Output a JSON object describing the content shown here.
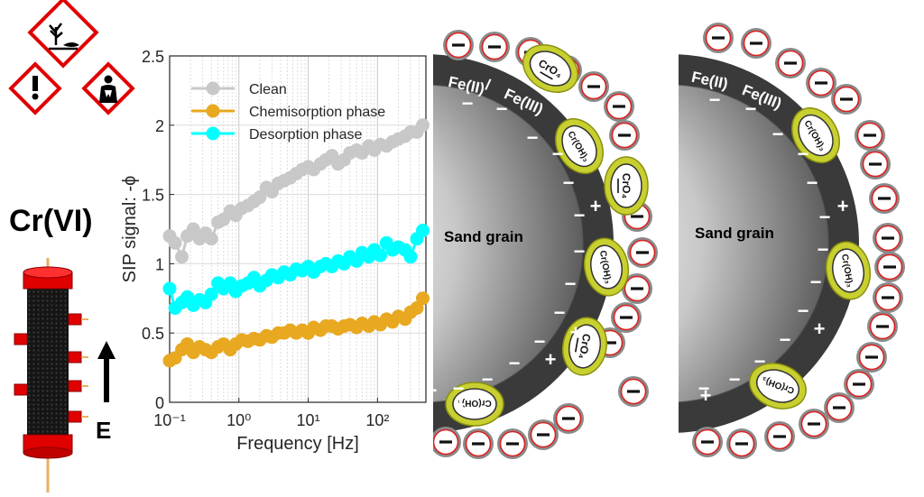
{
  "hazard": {
    "icons": [
      "environment-hazard-icon",
      "exclamation-hazard-icon",
      "health-hazard-icon"
    ]
  },
  "species_label": "Cr(VI)",
  "column": {
    "arrow_label": "E"
  },
  "chart_data": {
    "type": "scatter",
    "xlabel": "Frequency [Hz]",
    "ylabel": "SIP signal: -ϕ",
    "x_scale": "log",
    "xlim": [
      0.1,
      500
    ],
    "ylim": [
      0,
      2.5
    ],
    "yticks": [
      "0",
      "0.5",
      "1",
      "1.5",
      "2",
      "2.5"
    ],
    "xticks": [
      "10⁻¹",
      "10⁰",
      "10¹",
      "10²"
    ],
    "grid": true,
    "legend_position": "top-left",
    "series": [
      {
        "name": "Clean",
        "color": "#c8c8c8",
        "x": [
          0.1,
          0.12,
          0.15,
          0.18,
          0.22,
          0.27,
          0.33,
          0.4,
          0.5,
          0.6,
          0.75,
          0.9,
          1.1,
          1.35,
          1.65,
          2,
          2.5,
          3,
          3.7,
          4.5,
          5.5,
          6.7,
          8.2,
          10,
          12,
          15,
          18,
          22,
          27,
          33,
          40,
          50,
          60,
          75,
          90,
          110,
          135,
          165,
          200,
          250,
          300,
          370,
          450
        ],
        "y": [
          1.2,
          1.15,
          1.05,
          1.2,
          1.25,
          1.18,
          1.22,
          1.18,
          1.3,
          1.32,
          1.38,
          1.35,
          1.4,
          1.42,
          1.45,
          1.48,
          1.55,
          1.52,
          1.58,
          1.6,
          1.62,
          1.65,
          1.68,
          1.7,
          1.68,
          1.72,
          1.75,
          1.78,
          1.72,
          1.75,
          1.8,
          1.82,
          1.8,
          1.85,
          1.82,
          1.86,
          1.85,
          1.88,
          1.9,
          1.92,
          1.95,
          1.95,
          2.0
        ]
      },
      {
        "name": "Chemisorption phase",
        "color": "#e8a820",
        "x": [
          0.1,
          0.12,
          0.15,
          0.18,
          0.22,
          0.27,
          0.33,
          0.4,
          0.5,
          0.6,
          0.75,
          0.9,
          1.1,
          1.35,
          1.65,
          2,
          2.5,
          3,
          3.7,
          4.5,
          5.5,
          6.7,
          8.2,
          10,
          12,
          15,
          18,
          22,
          27,
          33,
          40,
          50,
          60,
          75,
          90,
          110,
          135,
          165,
          200,
          250,
          300,
          370,
          450
        ],
        "y": [
          0.3,
          0.32,
          0.38,
          0.42,
          0.36,
          0.4,
          0.38,
          0.36,
          0.4,
          0.42,
          0.38,
          0.42,
          0.45,
          0.44,
          0.46,
          0.45,
          0.48,
          0.47,
          0.5,
          0.5,
          0.52,
          0.5,
          0.52,
          0.5,
          0.54,
          0.52,
          0.55,
          0.55,
          0.53,
          0.55,
          0.56,
          0.54,
          0.57,
          0.55,
          0.58,
          0.56,
          0.6,
          0.58,
          0.62,
          0.6,
          0.65,
          0.68,
          0.75
        ]
      },
      {
        "name": "Desorption phase",
        "color": "#00ffff",
        "x": [
          0.1,
          0.12,
          0.15,
          0.18,
          0.22,
          0.27,
          0.33,
          0.4,
          0.5,
          0.6,
          0.75,
          0.9,
          1.1,
          1.35,
          1.65,
          2,
          2.5,
          3,
          3.7,
          4.5,
          5.5,
          6.7,
          8.2,
          10,
          12,
          15,
          18,
          22,
          27,
          33,
          40,
          50,
          60,
          75,
          90,
          110,
          135,
          165,
          200,
          250,
          300,
          370,
          450
        ],
        "y": [
          0.82,
          0.68,
          0.72,
          0.76,
          0.7,
          0.74,
          0.72,
          0.78,
          0.86,
          0.82,
          0.86,
          0.8,
          0.84,
          0.86,
          0.9,
          0.84,
          0.88,
          0.92,
          0.9,
          0.94,
          0.92,
          0.96,
          0.95,
          0.98,
          0.94,
          0.98,
          1.0,
          0.98,
          1.02,
          1.0,
          1.05,
          1.02,
          1.08,
          1.05,
          1.1,
          1.06,
          1.15,
          1.1,
          1.12,
          1.1,
          1.05,
          1.18,
          1.24
        ]
      }
    ]
  },
  "panel1": {
    "shell_label_left": "Fe(II)",
    "shell_label_right": "Fe(III)",
    "core_label": "Sand grain",
    "adsorbed": [
      {
        "label": "CrO₄",
        "kind": "chromate"
      },
      {
        "label": "Cr(OH)₃",
        "kind": "hydroxide"
      },
      {
        "label": "CrO₄",
        "kind": "chromate"
      },
      {
        "label": "Cr(OH)₃",
        "kind": "hydroxide"
      },
      {
        "label": "CrO₄",
        "kind": "chromate"
      },
      {
        "label": "Cr(OH)₃",
        "kind": "hydroxide"
      }
    ]
  },
  "panel2": {
    "shell_label_left": "Fe(II)",
    "shell_label_right": "Fe(III)",
    "core_label": "Sand grain",
    "adsorbed": [
      {
        "label": "Cr(OH)₃",
        "kind": "hydroxide"
      },
      {
        "label": "Cr(OH)₃",
        "kind": "hydroxide"
      },
      {
        "label": "Cr(OH)₃",
        "kind": "hydroxide"
      }
    ]
  },
  "charges": {
    "negative": "−",
    "positive": "+"
  }
}
